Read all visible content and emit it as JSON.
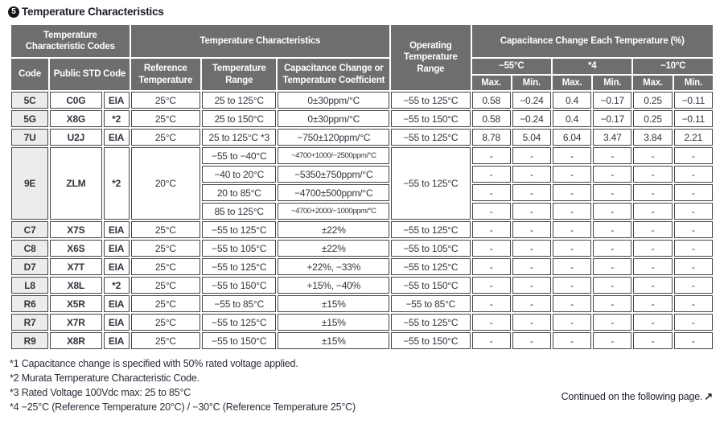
{
  "title_badge": "5",
  "title": "Temperature Characteristics",
  "colors": {
    "header_bg": "#6e6e6e",
    "header_text": "#ffffff",
    "code_column_bg": "#ececec",
    "border": "#454545",
    "text": "#30323c"
  },
  "table": {
    "headers": {
      "temp_char_codes": "Temperature Characteristic Codes",
      "temp_characteristics": "Temperature Characteristics",
      "operating_temp_range": "Operating Temperature Range",
      "cap_change_each_temp": "Capacitance Change Each Temperature (%)",
      "code": "Code",
      "public_std_code": "Public STD Code",
      "reference_temperature": "Reference Temperature",
      "temperature_range": "Temperature Range",
      "cap_change_or_coeff": "Capacitance Change or Temperature Coefficient",
      "col_minus55": "−55°C",
      "col_star4": "*4",
      "col_minus10": "−10°C",
      "max": "Max.",
      "min": "Min."
    },
    "rows": [
      [
        {
          "t": "5C",
          "c": "code"
        },
        {
          "t": "C0G",
          "c": "b"
        },
        {
          "t": "EIA",
          "c": "b"
        },
        {
          "t": "25°C"
        },
        {
          "t": "25 to 125°C"
        },
        {
          "t": "0±30ppm/°C"
        },
        {
          "t": "−55 to 125°C"
        },
        {
          "t": "0.58"
        },
        {
          "t": "−0.24"
        },
        {
          "t": "0.4"
        },
        {
          "t": "−0.17"
        },
        {
          "t": "0.25"
        },
        {
          "t": "−0.11"
        }
      ],
      [
        {
          "t": "5G",
          "c": "code"
        },
        {
          "t": "X8G",
          "c": "b"
        },
        {
          "t": "*2",
          "c": "b"
        },
        {
          "t": "25°C"
        },
        {
          "t": "25 to 150°C"
        },
        {
          "t": "0±30ppm/°C"
        },
        {
          "t": "−55 to 150°C"
        },
        {
          "t": "0.58"
        },
        {
          "t": "−0.24"
        },
        {
          "t": "0.4"
        },
        {
          "t": "−0.17"
        },
        {
          "t": "0.25"
        },
        {
          "t": "−0.11"
        }
      ],
      [
        {
          "t": "7U",
          "c": "code"
        },
        {
          "t": "U2J",
          "c": "b"
        },
        {
          "t": "EIA",
          "c": "b"
        },
        {
          "t": "25°C"
        },
        {
          "t": "25 to 125°C *3"
        },
        {
          "t": "−750±120ppm/°C"
        },
        {
          "t": "−55 to 125°C"
        },
        {
          "t": "8.78"
        },
        {
          "t": "5.04"
        },
        {
          "t": "6.04"
        },
        {
          "t": "3.47"
        },
        {
          "t": "3.84"
        },
        {
          "t": "2.21"
        }
      ],
      [
        {
          "t": "9E",
          "c": "code",
          "rs": 4
        },
        {
          "t": "ZLM",
          "c": "b",
          "rs": 4
        },
        {
          "t": "*2",
          "c": "b",
          "rs": 4
        },
        {
          "t": "20°C",
          "rs": 4
        },
        {
          "t": "−55 to −40°C"
        },
        {
          "t": "−4700+1000/−2500ppm/°C"
        },
        {
          "t": "−55 to 125°C",
          "rs": 4
        },
        {
          "t": "-"
        },
        {
          "t": "-"
        },
        {
          "t": "-"
        },
        {
          "t": "-"
        },
        {
          "t": "-"
        },
        {
          "t": "-"
        }
      ],
      [
        {
          "t": "−40 to 20°C"
        },
        {
          "t": "−5350±750ppm/°C"
        },
        {
          "t": "-"
        },
        {
          "t": "-"
        },
        {
          "t": "-"
        },
        {
          "t": "-"
        },
        {
          "t": "-"
        },
        {
          "t": "-"
        }
      ],
      [
        {
          "t": "20 to 85°C"
        },
        {
          "t": "−4700±500ppm/°C"
        },
        {
          "t": "-"
        },
        {
          "t": "-"
        },
        {
          "t": "-"
        },
        {
          "t": "-"
        },
        {
          "t": "-"
        },
        {
          "t": "-"
        }
      ],
      [
        {
          "t": "85 to 125°C"
        },
        {
          "t": "−4700+2000/−1000ppm/°C"
        },
        {
          "t": "-"
        },
        {
          "t": "-"
        },
        {
          "t": "-"
        },
        {
          "t": "-"
        },
        {
          "t": "-"
        },
        {
          "t": "-"
        }
      ],
      [
        {
          "t": "C7",
          "c": "code"
        },
        {
          "t": "X7S",
          "c": "b"
        },
        {
          "t": "EIA",
          "c": "b"
        },
        {
          "t": "25°C"
        },
        {
          "t": "−55 to 125°C"
        },
        {
          "t": "±22%"
        },
        {
          "t": "−55 to 125°C"
        },
        {
          "t": "-"
        },
        {
          "t": "-"
        },
        {
          "t": "-"
        },
        {
          "t": "-"
        },
        {
          "t": "-"
        },
        {
          "t": "-"
        }
      ],
      [
        {
          "t": "C8",
          "c": "code"
        },
        {
          "t": "X6S",
          "c": "b"
        },
        {
          "t": "EIA",
          "c": "b"
        },
        {
          "t": "25°C"
        },
        {
          "t": "−55 to 105°C"
        },
        {
          "t": "±22%"
        },
        {
          "t": "−55 to 105°C"
        },
        {
          "t": "-"
        },
        {
          "t": "-"
        },
        {
          "t": "-"
        },
        {
          "t": "-"
        },
        {
          "t": "-"
        },
        {
          "t": "-"
        }
      ],
      [
        {
          "t": "D7",
          "c": "code"
        },
        {
          "t": "X7T",
          "c": "b"
        },
        {
          "t": "EIA",
          "c": "b"
        },
        {
          "t": "25°C"
        },
        {
          "t": "−55 to 125°C"
        },
        {
          "t": "+22%, −33%"
        },
        {
          "t": "−55 to 125°C"
        },
        {
          "t": "-"
        },
        {
          "t": "-"
        },
        {
          "t": "-"
        },
        {
          "t": "-"
        },
        {
          "t": "-"
        },
        {
          "t": "-"
        }
      ],
      [
        {
          "t": "L8",
          "c": "code"
        },
        {
          "t": "X8L",
          "c": "b"
        },
        {
          "t": "*2",
          "c": "b"
        },
        {
          "t": "25°C"
        },
        {
          "t": "−55 to 150°C"
        },
        {
          "t": "+15%, −40%"
        },
        {
          "t": "−55 to 150°C"
        },
        {
          "t": "-"
        },
        {
          "t": "-"
        },
        {
          "t": "-"
        },
        {
          "t": "-"
        },
        {
          "t": "-"
        },
        {
          "t": "-"
        }
      ],
      [
        {
          "t": "R6",
          "c": "code"
        },
        {
          "t": "X5R",
          "c": "b"
        },
        {
          "t": "EIA",
          "c": "b"
        },
        {
          "t": "25°C"
        },
        {
          "t": "−55 to 85°C"
        },
        {
          "t": "±15%"
        },
        {
          "t": "−55 to 85°C"
        },
        {
          "t": "-"
        },
        {
          "t": "-"
        },
        {
          "t": "-"
        },
        {
          "t": "-"
        },
        {
          "t": "-"
        },
        {
          "t": "-"
        }
      ],
      [
        {
          "t": "R7",
          "c": "code"
        },
        {
          "t": "X7R",
          "c": "b"
        },
        {
          "t": "EIA",
          "c": "b"
        },
        {
          "t": "25°C"
        },
        {
          "t": "−55 to 125°C"
        },
        {
          "t": "±15%"
        },
        {
          "t": "−55 to 125°C"
        },
        {
          "t": "-"
        },
        {
          "t": "-"
        },
        {
          "t": "-"
        },
        {
          "t": "-"
        },
        {
          "t": "-"
        },
        {
          "t": "-"
        }
      ],
      [
        {
          "t": "R9",
          "c": "code"
        },
        {
          "t": "X8R",
          "c": "b"
        },
        {
          "t": "EIA",
          "c": "b"
        },
        {
          "t": "25°C"
        },
        {
          "t": "−55 to 150°C"
        },
        {
          "t": "±15%"
        },
        {
          "t": "−55 to 150°C"
        },
        {
          "t": "-"
        },
        {
          "t": "-"
        },
        {
          "t": "-"
        },
        {
          "t": "-"
        },
        {
          "t": "-"
        },
        {
          "t": "-"
        }
      ]
    ]
  },
  "footnotes": [
    "*1 Capacitance change is specified with 50% rated voltage applied.",
    "*2 Murata Temperature Characteristic Code.",
    "*3 Rated Voltage 100Vdc max: 25 to 85°C",
    "*4 −25°C (Reference Temperature 20°C) / −30°C (Reference Temperature 25°C)"
  ],
  "continued_note": "Continued on the following page.",
  "continued_arrow": "↗"
}
